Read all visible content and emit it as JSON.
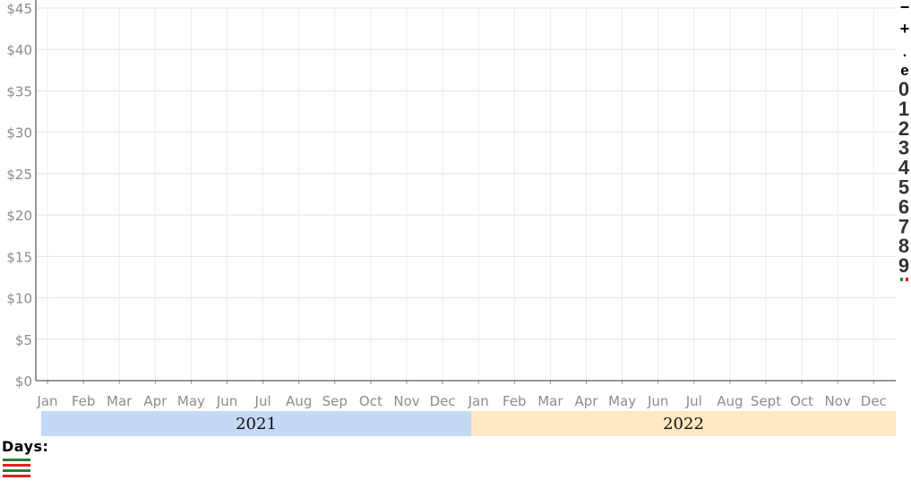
{
  "chart_data": {
    "type": "line",
    "title": "",
    "xlabel": "",
    "ylabel": "",
    "y_ticks": [
      "$0",
      "$5",
      "$10",
      "$15",
      "$20",
      "$25",
      "$30",
      "$35",
      "$40",
      "$45"
    ],
    "ylim": [
      0,
      45
    ],
    "x_ticks": [
      "Jan",
      "Feb",
      "Mar",
      "Apr",
      "May",
      "Jun",
      "Jul",
      "Aug",
      "Sep",
      "Oct",
      "Nov",
      "Dec",
      "Jan",
      "Feb",
      "Mar",
      "Apr",
      "May",
      "Jun",
      "Jul",
      "Aug",
      "Sept",
      "Oct",
      "Nov",
      "Dec"
    ],
    "xlim": [
      "2021-01",
      "2022-12"
    ],
    "year_bands": [
      {
        "label": "2021",
        "color": "#c5d9f5"
      },
      {
        "label": "2022",
        "color": "#fde8c2"
      }
    ],
    "grid": true,
    "series": []
  },
  "side_key": {
    "signs": [
      "−",
      "+",
      ".",
      "e"
    ],
    "digits": [
      "0",
      "1",
      "2",
      "3",
      "4",
      "5",
      "6",
      "7",
      "8",
      "9"
    ],
    "marker_colors": [
      "#2e8b2e",
      "#dd2222"
    ]
  },
  "legend": {
    "title": "Days:",
    "swatch_colors": [
      "#2e7d32",
      "#dd2222",
      "#2e7d32",
      "#dd2222"
    ]
  }
}
